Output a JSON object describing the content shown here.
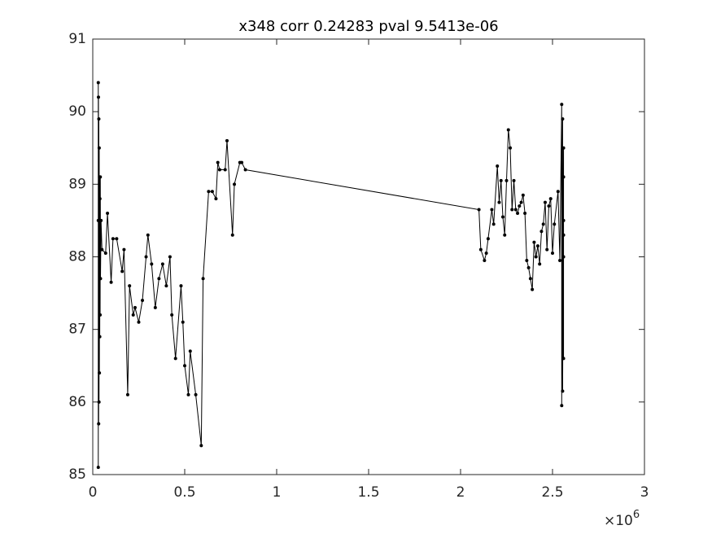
{
  "chart_data": {
    "type": "line",
    "title": "x348 corr 0.24283 pval 9.5413e-06",
    "x_multiplier": {
      "base": "×10",
      "exponent": "6"
    },
    "xlim": [
      0,
      3
    ],
    "xticks": [
      0,
      0.5,
      1,
      1.5,
      2,
      2.5,
      3
    ],
    "ylim": [
      85,
      91
    ],
    "yticks": [
      85,
      86,
      87,
      88,
      89,
      90,
      91
    ],
    "grid": false,
    "series": [
      {
        "color": "#000000",
        "x": [
          0.03,
          0.03,
          0.03,
          0.031,
          0.032,
          0.033,
          0.034,
          0.035,
          0.036,
          0.037,
          0.038,
          0.039,
          0.04,
          0.041,
          0.042,
          0.045,
          0.05,
          0.07,
          0.08,
          0.1,
          0.11,
          0.13,
          0.16,
          0.17,
          0.19,
          0.2,
          0.22,
          0.23,
          0.25,
          0.27,
          0.29,
          0.3,
          0.32,
          0.34,
          0.36,
          0.38,
          0.4,
          0.42,
          0.43,
          0.45,
          0.48,
          0.49,
          0.5,
          0.52,
          0.53,
          0.56,
          0.59,
          0.6,
          0.63,
          0.65,
          0.67,
          0.68,
          0.69,
          0.72,
          0.73,
          0.76,
          0.77,
          0.8,
          0.81,
          0.83,
          2.1,
          2.11,
          2.13,
          2.14,
          2.15,
          2.17,
          2.18,
          2.2,
          2.21,
          2.22,
          2.23,
          2.24,
          2.25,
          2.26,
          2.27,
          2.28,
          2.29,
          2.3,
          2.31,
          2.32,
          2.33,
          2.34,
          2.35,
          2.36,
          2.37,
          2.38,
          2.39,
          2.4,
          2.41,
          2.42,
          2.43,
          2.44,
          2.45,
          2.46,
          2.47,
          2.48,
          2.49,
          2.5,
          2.51,
          2.53,
          2.54,
          2.55,
          2.55,
          2.555,
          2.555,
          2.56,
          2.56,
          2.56,
          2.56,
          2.56,
          2.56
        ],
        "values": [
          88.5,
          90.4,
          85.1,
          90.2,
          85.7,
          89.9,
          86.0,
          89.5,
          86.4,
          89.1,
          86.9,
          88.8,
          87.2,
          89.1,
          87.7,
          88.5,
          88.1,
          88.05,
          88.6,
          87.65,
          88.25,
          88.25,
          87.8,
          88.1,
          86.1,
          87.6,
          87.2,
          87.3,
          87.1,
          87.4,
          88.0,
          88.3,
          87.9,
          87.3,
          87.7,
          87.9,
          87.6,
          88.0,
          87.2,
          86.6,
          87.6,
          87.1,
          86.5,
          86.1,
          86.7,
          86.1,
          85.4,
          87.7,
          88.9,
          88.9,
          88.8,
          89.3,
          89.2,
          89.2,
          89.6,
          88.3,
          89.0,
          89.3,
          89.3,
          89.2,
          88.65,
          88.1,
          87.95,
          88.05,
          88.25,
          88.65,
          88.45,
          89.25,
          88.75,
          89.05,
          88.55,
          88.3,
          89.05,
          89.75,
          89.5,
          88.65,
          89.05,
          88.65,
          88.6,
          88.7,
          88.75,
          88.85,
          88.6,
          87.95,
          87.85,
          87.7,
          87.55,
          88.2,
          88.0,
          88.15,
          87.9,
          88.35,
          88.45,
          88.75,
          88.1,
          88.7,
          88.8,
          88.05,
          88.45,
          88.9,
          87.95,
          90.1,
          85.95,
          89.9,
          86.15,
          89.5,
          86.6,
          89.1,
          88.0,
          88.5,
          88.3
        ]
      }
    ]
  }
}
